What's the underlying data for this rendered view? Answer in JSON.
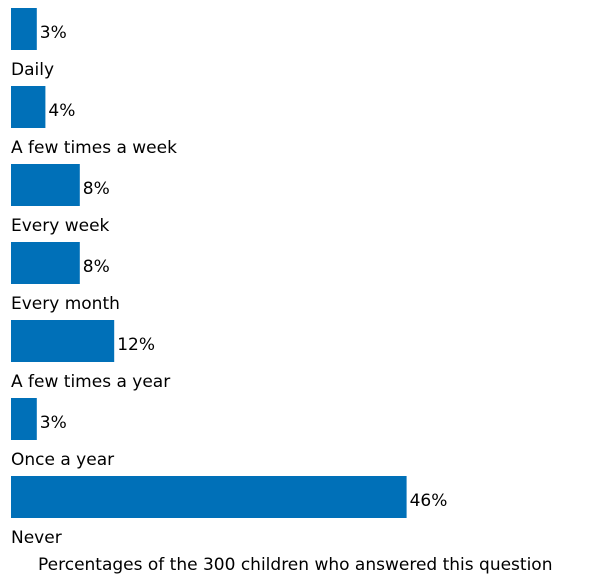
{
  "chart_data": {
    "type": "bar",
    "orientation": "horizontal",
    "categories": [
      "Daily",
      "A few times a week",
      "Every week",
      "Every month",
      "A few times a year",
      "Once a year",
      "Never"
    ],
    "values": [
      3,
      4,
      8,
      8,
      12,
      3,
      46
    ],
    "value_labels": [
      "3%",
      "4%",
      "8%",
      "8%",
      "12%",
      "3%",
      "46%"
    ],
    "value_unit": "%",
    "caption": "Percentages of the 300 children who answered this question",
    "grid": false,
    "legend": "none",
    "bar_color": "#0070b8"
  }
}
